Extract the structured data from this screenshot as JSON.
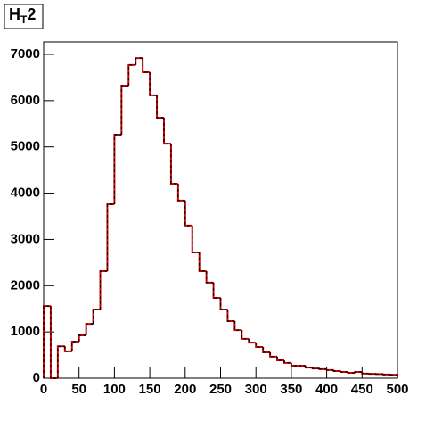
{
  "chart_data": {
    "type": "histogram",
    "title": [
      "H",
      "T",
      "2"
    ],
    "bins": [
      0,
      10,
      20,
      30,
      40,
      50,
      60,
      70,
      80,
      90,
      100,
      110,
      120,
      130,
      140,
      150,
      160,
      170,
      180,
      190,
      200,
      210,
      220,
      230,
      240,
      250,
      260,
      270,
      280,
      290,
      300,
      310,
      320,
      330,
      340,
      350,
      360,
      370,
      380,
      390,
      400,
      410,
      420,
      430,
      440,
      450,
      460,
      470,
      480,
      490,
      500
    ],
    "counts": [
      1560,
      0,
      690,
      580,
      790,
      925,
      1175,
      1485,
      2315,
      3760,
      5265,
      6325,
      6770,
      6920,
      6615,
      6115,
      5630,
      5070,
      4205,
      3840,
      3300,
      2720,
      2315,
      2065,
      1735,
      1485,
      1235,
      1040,
      850,
      770,
      675,
      560,
      465,
      385,
      330,
      270,
      270,
      230,
      210,
      195,
      175,
      155,
      135,
      115,
      135,
      100,
      95,
      90,
      80,
      75
    ],
    "color": "#cc0000",
    "dash_color": "#000000",
    "xlim": [
      0,
      500
    ],
    "xticks": [
      0,
      50,
      100,
      150,
      200,
      250,
      300,
      350,
      400,
      450,
      500
    ],
    "ylim": [
      0,
      7270
    ],
    "yticks": [
      0,
      1000,
      2000,
      3000,
      4000,
      5000,
      6000,
      7000
    ]
  }
}
